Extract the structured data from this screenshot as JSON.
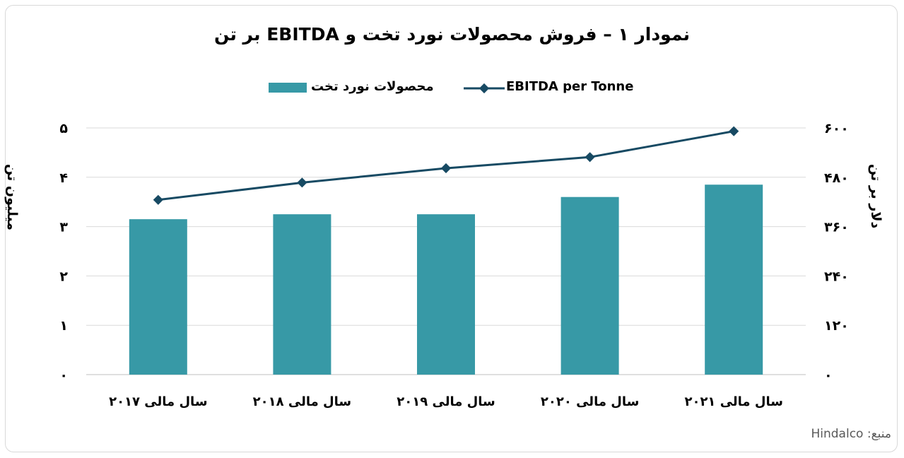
{
  "chart_data": {
    "type": "bar",
    "title": "نمودار ۱ – فروش محصولات نورد تخت و EBITDA بر تن",
    "categories": [
      "سال مالی ۲۰۱۷",
      "سال مالی ۲۰۱۸",
      "سال مالی ۲۰۱۹",
      "سال مالی ۲۰۲۰",
      "سال مالی ۲۰۲۱"
    ],
    "series": [
      {
        "name": "محصولات نورد تخت",
        "kind": "bar",
        "axis": "left",
        "color": "#3799a6",
        "values": [
          3.15,
          3.25,
          3.25,
          3.6,
          3.85
        ]
      },
      {
        "name": "EBITDA per Tonne",
        "kind": "line",
        "axis": "right",
        "color": "#174a63",
        "values": [
          425,
          467,
          502,
          529,
          592
        ]
      }
    ],
    "y_left": {
      "label": "میلیون تن",
      "ylim": [
        0,
        5
      ],
      "ticks": [
        0,
        1,
        2,
        3,
        4,
        5
      ],
      "tick_labels": [
        "۰",
        "۱",
        "۲",
        "۳",
        "۴",
        "۵"
      ]
    },
    "y_right": {
      "label": "دلار بر تن",
      "ylim": [
        0,
        600
      ],
      "ticks": [
        0,
        120,
        240,
        360,
        480,
        600
      ],
      "tick_labels": [
        "۰",
        "۱۲۰",
        "۲۴۰",
        "۳۶۰",
        "۴۸۰",
        "۶۰۰"
      ]
    },
    "grid": true,
    "legend": "top"
  },
  "source": "منبع: Hindalco"
}
